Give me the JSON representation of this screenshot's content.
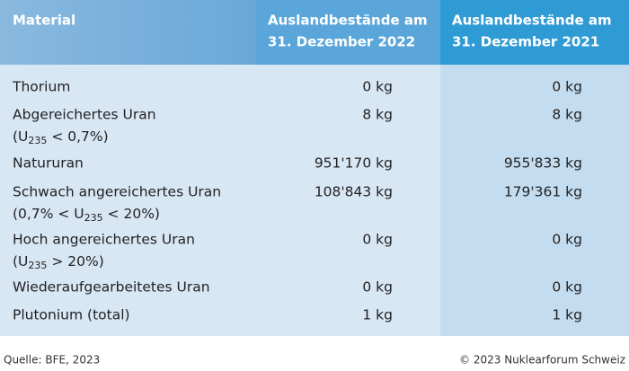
{
  "header": {
    "columns": [
      [
        "Material"
      ],
      [
        "Auslandbestände am",
        "31. Dezember 2022"
      ],
      [
        "Auslandbestände am",
        "31. Dezember 2021"
      ]
    ]
  },
  "rows": [
    {
      "material": {
        "line1": "Thorium"
      },
      "values": [
        "0 kg",
        "0 kg"
      ]
    },
    {
      "material": {
        "line1": "Abgereichertes Uran",
        "line2": [
          "(U",
          "235",
          " < 0,7%)"
        ]
      },
      "values": [
        "8 kg",
        "8 kg"
      ]
    },
    {
      "material": {
        "line1": "Natururan"
      },
      "values": [
        "951'170 kg",
        "955'833 kg"
      ]
    },
    {
      "material": {
        "line1": "Schwach angereichertes Uran",
        "line2": [
          "(0,7% < U",
          "235",
          " < 20%)"
        ]
      },
      "values": [
        "108'843 kg",
        "179'361 kg"
      ]
    },
    {
      "material": {
        "line1": "Hoch angereichertes Uran",
        "line2": [
          "(U",
          "235",
          " > 20%)"
        ]
      },
      "values": [
        "0 kg",
        "0 kg"
      ]
    },
    {
      "material": {
        "line1": "Wiederaufgearbeitetes Uran"
      },
      "values": [
        "0 kg",
        "0 kg"
      ]
    },
    {
      "material": {
        "line1": "Plutonium (total)"
      },
      "values": [
        "1 kg",
        "1 kg"
      ]
    }
  ],
  "footer": {
    "source": "Quelle: BFE, 2023",
    "copyright": "© 2023 Nuklearforum Schweiz"
  }
}
